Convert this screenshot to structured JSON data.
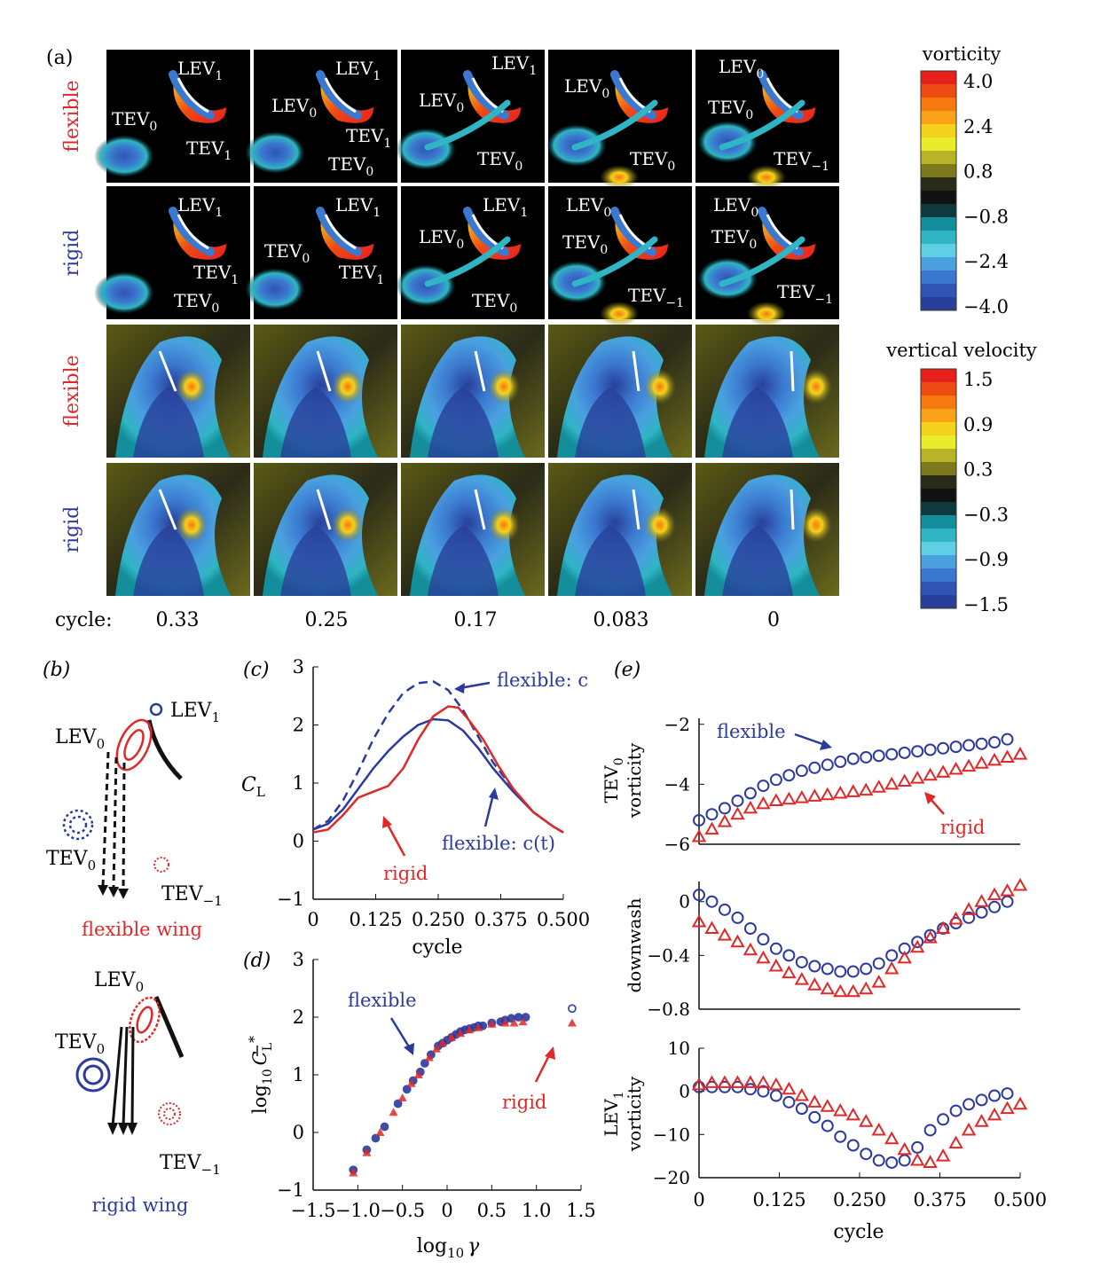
{
  "panel_a": {
    "label": "(a)",
    "row_labels": [
      "flexible",
      "rigid",
      "flexible",
      "rigid"
    ],
    "row_label_colors": [
      "#e02828",
      "#2c3a9e",
      "#e02828",
      "#2c3a9e"
    ],
    "cycle_label": "cycle:",
    "cycles": [
      "0.33",
      "0.25",
      "0.17",
      "0.083",
      "0"
    ],
    "vorticity_legend": {
      "title": "vorticity",
      "ticks": [
        "4.0",
        "2.4",
        "0.8",
        "−0.8",
        "−2.4",
        "−4.0"
      ],
      "colors": [
        "#e8201c",
        "#f04a14",
        "#f77a10",
        "#fba318",
        "#f5d21c",
        "#e9ec2c",
        "#b8b428",
        "#7c7a1c",
        "#2a2a18",
        "#111111",
        "#0e3a3e",
        "#138e9a",
        "#2fb5c4",
        "#5fd0e4",
        "#4aa0e0",
        "#3b78cf",
        "#2f55b4",
        "#28409a"
      ]
    },
    "velocity_legend": {
      "title": "vertical velocity",
      "ticks": [
        "1.5",
        "0.9",
        "0.3",
        "−0.3",
        "−0.9",
        "−1.5"
      ],
      "colors": [
        "#e8201c",
        "#f04a14",
        "#f77a10",
        "#fba318",
        "#f5d21c",
        "#e9ec2c",
        "#b8b428",
        "#7c7a1c",
        "#2a2a18",
        "#111111",
        "#0e3a3e",
        "#138e9a",
        "#2fb5c4",
        "#5fd0e4",
        "#4aa0e0",
        "#3b78cf",
        "#2f55b4",
        "#28409a"
      ]
    },
    "row1_labels": [
      {
        "LEV1": "LEV",
        "TEV0": "TEV",
        "TEV1": "TEV"
      },
      {
        "LEV1": "LEV",
        "LEV0": "LEV",
        "TEV1": "TEV",
        "TEV0": "TEV"
      },
      {
        "LEV1": "LEV",
        "LEV0": "LEV",
        "TEV0": "TEV"
      },
      {
        "LEV0": "LEV",
        "TEV0": "TEV"
      },
      {
        "LEV0": "LEV",
        "TEV0": "TEV",
        "TEVm1": "TEV"
      }
    ],
    "subs": {
      "s1": "1",
      "s0": "0",
      "sm1": "−1"
    }
  },
  "panel_b": {
    "label": "(b)",
    "flexible_caption": "flexible wing",
    "rigid_caption": "rigid wing",
    "lev1": "LEV",
    "lev0": "LEV",
    "tev0": "TEV",
    "tevm1": "TEV",
    "sub1": "1",
    "sub0": "0",
    "subm1": "−1"
  },
  "panel_c": {
    "label": "(c)",
    "annotations": {
      "flex_c": "flexible: c",
      "flex_ct": "flexible: c(t)",
      "rigid": "rigid"
    },
    "chart_data": {
      "type": "line",
      "xlabel": "cycle",
      "ylabel": "C",
      "ylabel_sub": "L",
      "xlim": [
        0,
        0.5
      ],
      "ylim": [
        -1,
        3
      ],
      "xticks": [
        "0",
        "0.125",
        "0.250",
        "0.375",
        "0.500"
      ],
      "yticks": [
        "−1",
        "0",
        "1",
        "2",
        "3"
      ],
      "series": [
        {
          "name": "flexible: c",
          "color": "#2c3a9e",
          "dash": true,
          "x": [
            0,
            0.03,
            0.06,
            0.09,
            0.12,
            0.15,
            0.18,
            0.21,
            0.24,
            0.27,
            0.3,
            0.33,
            0.36,
            0.4,
            0.44,
            0.48,
            0.5
          ],
          "y": [
            0.2,
            0.35,
            0.7,
            1.2,
            1.75,
            2.2,
            2.55,
            2.72,
            2.75,
            2.6,
            2.25,
            1.8,
            1.35,
            0.9,
            0.5,
            0.25,
            0.15
          ]
        },
        {
          "name": "flexible: c(t)",
          "color": "#2c3a9e",
          "dash": false,
          "x": [
            0,
            0.03,
            0.06,
            0.09,
            0.12,
            0.15,
            0.18,
            0.21,
            0.24,
            0.27,
            0.3,
            0.33,
            0.36,
            0.4,
            0.44,
            0.48,
            0.5
          ],
          "y": [
            0.2,
            0.3,
            0.55,
            0.9,
            1.25,
            1.55,
            1.8,
            2.0,
            2.1,
            2.08,
            1.9,
            1.6,
            1.25,
            0.85,
            0.5,
            0.25,
            0.15
          ]
        },
        {
          "name": "rigid",
          "color": "#e02828",
          "dash": false,
          "x": [
            0,
            0.03,
            0.06,
            0.09,
            0.12,
            0.15,
            0.18,
            0.21,
            0.24,
            0.27,
            0.29,
            0.31,
            0.34,
            0.37,
            0.4,
            0.44,
            0.48,
            0.5
          ],
          "y": [
            0.15,
            0.2,
            0.45,
            0.75,
            0.85,
            0.95,
            1.25,
            1.75,
            2.15,
            2.32,
            2.3,
            2.1,
            1.75,
            1.3,
            0.9,
            0.5,
            0.25,
            0.15
          ]
        }
      ]
    }
  },
  "panel_d": {
    "label": "(d)",
    "annotations": {
      "flexible": "flexible",
      "rigid": "rigid"
    },
    "chart_data": {
      "type": "scatter",
      "xlabel": "log",
      "xlabel_sub": "10",
      "xlabel_var": "γ",
      "ylabel": "log",
      "ylabel_sub": "10",
      "ylabel_var": "C",
      "ylabel_var_sub": "L",
      "ylabel_sup": "*",
      "xlim": [
        -1.5,
        1.5
      ],
      "ylim": [
        -1,
        3
      ],
      "xticks": [
        "−1.5",
        "−1.0",
        "−0.5",
        "0",
        "0.5",
        "1.0",
        "1.5"
      ],
      "yticks": [
        "−1",
        "0",
        "1",
        "2",
        "3"
      ],
      "series": [
        {
          "name": "flexible",
          "color": "#2c3a9e",
          "marker": "circle",
          "x": [
            -1.05,
            -0.9,
            -0.8,
            -0.7,
            -0.55,
            -0.45,
            -0.38,
            -0.3,
            -0.25,
            -0.18,
            -0.1,
            -0.05,
            0.0,
            0.05,
            0.1,
            0.15,
            0.2,
            0.25,
            0.3,
            0.35,
            0.4,
            0.5,
            0.6,
            0.65,
            0.72,
            0.8,
            0.88,
            1.4
          ],
          "y": [
            -0.65,
            -0.3,
            -0.1,
            0.1,
            0.5,
            0.75,
            0.9,
            1.05,
            1.2,
            1.35,
            1.5,
            1.55,
            1.6,
            1.65,
            1.7,
            1.75,
            1.78,
            1.8,
            1.82,
            1.85,
            1.85,
            1.9,
            1.92,
            1.95,
            1.98,
            2.0,
            2.0,
            2.15
          ]
        },
        {
          "name": "rigid",
          "color": "#e02828",
          "marker": "triangle",
          "x": [
            -1.05,
            -0.9,
            -0.75,
            -0.6,
            -0.5,
            -0.4,
            -0.32,
            -0.2,
            -0.12,
            -0.05,
            0.05,
            0.15,
            0.25,
            0.35,
            0.5,
            0.65,
            0.75,
            0.85,
            1.4
          ],
          "y": [
            -0.7,
            -0.35,
            0.0,
            0.35,
            0.6,
            0.85,
            1.0,
            1.3,
            1.45,
            1.55,
            1.65,
            1.72,
            1.78,
            1.82,
            1.88,
            1.9,
            1.9,
            1.92,
            1.9
          ]
        }
      ]
    }
  },
  "panel_e": {
    "label": "(e)",
    "chart_data": [
      {
        "type": "scatter",
        "name": "TEV0 vorticity",
        "ylabel": "TEV",
        "ylabel_sub": "0",
        "ylabel2": "vorticity",
        "ylim": [
          -6,
          -1.8
        ],
        "yticks": [
          "−2",
          "−4",
          "−6"
        ],
        "ytick_values": [
          -2,
          -4,
          -6
        ],
        "xlim": [
          0,
          0.5
        ],
        "annotations": {
          "flexible": "flexible",
          "rigid": "rigid"
        },
        "series": [
          {
            "name": "flexible",
            "color": "#2c3a9e",
            "marker": "circle",
            "x": [
              0,
              0.02,
              0.04,
              0.06,
              0.08,
              0.1,
              0.12,
              0.14,
              0.16,
              0.18,
              0.2,
              0.22,
              0.24,
              0.26,
              0.28,
              0.3,
              0.32,
              0.34,
              0.36,
              0.38,
              0.4,
              0.42,
              0.44,
              0.46,
              0.48
            ],
            "y": [
              -5.2,
              -5.0,
              -4.8,
              -4.55,
              -4.3,
              -4.05,
              -3.85,
              -3.7,
              -3.55,
              -3.45,
              -3.35,
              -3.25,
              -3.15,
              -3.1,
              -3.05,
              -3.0,
              -2.95,
              -2.9,
              -2.85,
              -2.8,
              -2.75,
              -2.7,
              -2.65,
              -2.6,
              -2.5
            ]
          },
          {
            "name": "rigid",
            "color": "#e02828",
            "marker": "triangle",
            "x": [
              0,
              0.02,
              0.04,
              0.06,
              0.08,
              0.1,
              0.12,
              0.14,
              0.16,
              0.18,
              0.2,
              0.22,
              0.24,
              0.26,
              0.28,
              0.3,
              0.32,
              0.34,
              0.36,
              0.38,
              0.4,
              0.42,
              0.44,
              0.46,
              0.48,
              0.5
            ],
            "y": [
              -5.75,
              -5.5,
              -5.25,
              -5.0,
              -4.8,
              -4.65,
              -4.55,
              -4.5,
              -4.45,
              -4.4,
              -4.35,
              -4.3,
              -4.25,
              -4.2,
              -4.1,
              -4.0,
              -3.9,
              -3.8,
              -3.7,
              -3.6,
              -3.5,
              -3.4,
              -3.3,
              -3.2,
              -3.1,
              -3.0
            ]
          }
        ]
      },
      {
        "type": "scatter",
        "name": "downwash",
        "ylabel": "downwash",
        "ylim": [
          -0.8,
          0.15
        ],
        "yticks": [
          "0",
          "−0.4",
          "−0.8"
        ],
        "ytick_values": [
          0,
          -0.4,
          -0.8
        ],
        "xlim": [
          0,
          0.5
        ],
        "series": [
          {
            "name": "flexible",
            "color": "#2c3a9e",
            "marker": "circle",
            "x": [
              0,
              0.02,
              0.04,
              0.06,
              0.08,
              0.1,
              0.12,
              0.14,
              0.16,
              0.18,
              0.2,
              0.22,
              0.24,
              0.26,
              0.28,
              0.3,
              0.32,
              0.34,
              0.36,
              0.38,
              0.4,
              0.42,
              0.44,
              0.46,
              0.48
            ],
            "y": [
              0.05,
              0.0,
              -0.06,
              -0.12,
              -0.2,
              -0.28,
              -0.35,
              -0.4,
              -0.45,
              -0.48,
              -0.5,
              -0.52,
              -0.52,
              -0.5,
              -0.46,
              -0.4,
              -0.35,
              -0.3,
              -0.25,
              -0.2,
              -0.16,
              -0.12,
              -0.08,
              -0.04,
              0.0
            ]
          },
          {
            "name": "rigid",
            "color": "#e02828",
            "marker": "triangle",
            "x": [
              0,
              0.02,
              0.04,
              0.06,
              0.08,
              0.1,
              0.12,
              0.14,
              0.16,
              0.18,
              0.2,
              0.22,
              0.24,
              0.26,
              0.28,
              0.3,
              0.32,
              0.34,
              0.36,
              0.38,
              0.4,
              0.42,
              0.44,
              0.46,
              0.48,
              0.5
            ],
            "y": [
              -0.15,
              -0.2,
              -0.25,
              -0.3,
              -0.36,
              -0.42,
              -0.48,
              -0.53,
              -0.58,
              -0.62,
              -0.65,
              -0.67,
              -0.67,
              -0.65,
              -0.6,
              -0.5,
              -0.42,
              -0.34,
              -0.27,
              -0.2,
              -0.13,
              -0.06,
              0.0,
              0.05,
              0.08,
              0.12
            ]
          }
        ]
      },
      {
        "type": "scatter",
        "name": "LEV1 vorticity",
        "ylabel": "LEV",
        "ylabel_sub": "1",
        "ylabel2": "vorticity",
        "ylim": [
          -20,
          10
        ],
        "yticks": [
          "10",
          "0",
          "−10",
          "−20"
        ],
        "ytick_values": [
          10,
          0,
          -10,
          -20
        ],
        "xlim": [
          0,
          0.5
        ],
        "xlabel": "cycle",
        "xticks": [
          "0",
          "0.125",
          "0.250",
          "0.375",
          "0.500"
        ],
        "series": [
          {
            "name": "flexible",
            "color": "#2c3a9e",
            "marker": "circle",
            "x": [
              0,
              0.02,
              0.04,
              0.06,
              0.08,
              0.1,
              0.12,
              0.14,
              0.16,
              0.18,
              0.2,
              0.22,
              0.24,
              0.26,
              0.28,
              0.3,
              0.32,
              0.34,
              0.36,
              0.38,
              0.4,
              0.42,
              0.44,
              0.46,
              0.48
            ],
            "y": [
              1,
              1,
              1,
              1,
              0.5,
              0,
              -1,
              -2.5,
              -4,
              -6,
              -8,
              -10.5,
              -12.5,
              -14.5,
              -16,
              -16.5,
              -16,
              -13,
              -9,
              -6.5,
              -4.5,
              -3,
              -2,
              -1,
              -0.5
            ]
          },
          {
            "name": "rigid",
            "color": "#e02828",
            "marker": "triangle",
            "x": [
              0,
              0.02,
              0.04,
              0.06,
              0.08,
              0.1,
              0.12,
              0.14,
              0.16,
              0.18,
              0.2,
              0.22,
              0.24,
              0.26,
              0.28,
              0.3,
              0.32,
              0.34,
              0.36,
              0.38,
              0.4,
              0.42,
              0.44,
              0.46,
              0.48,
              0.5
            ],
            "y": [
              1.5,
              2,
              2,
              2,
              2,
              2,
              1.5,
              0.5,
              -1,
              -2.5,
              -3.5,
              -4.5,
              -5.5,
              -7,
              -9,
              -11,
              -13.5,
              -16,
              -16.5,
              -15,
              -12,
              -9,
              -7,
              -5.5,
              -4,
              -3
            ]
          }
        ]
      }
    ]
  }
}
